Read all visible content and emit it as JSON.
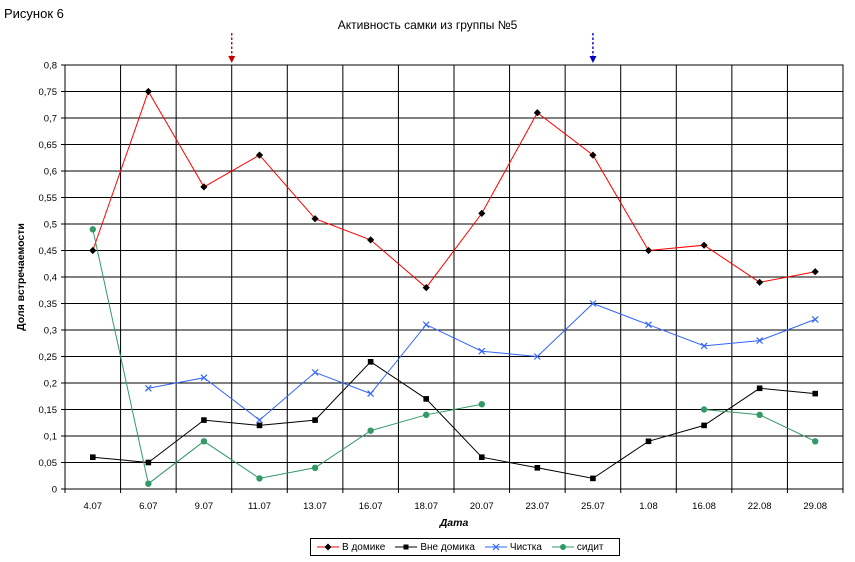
{
  "figure_label": "Рисунок 6",
  "chart_data": {
    "type": "line",
    "title": "Активность самки из группы №5",
    "xlabel": "Дата",
    "ylabel": "Доля встречаемости",
    "ylim": [
      0,
      0.8
    ],
    "ytick_step": 0.05,
    "y_tick_labels": [
      "0",
      "0,05",
      "0,1",
      "0,15",
      "0,2",
      "0,25",
      "0,3",
      "0,35",
      "0,4",
      "0,45",
      "0,5",
      "0,55",
      "0,6",
      "0,65",
      "0,7",
      "0,75",
      "0,8"
    ],
    "grid": true,
    "legend_position": "bottom",
    "categories": [
      "4.07",
      "6.07",
      "9.07",
      "11.07",
      "13.07",
      "16.07",
      "18.07",
      "20.07",
      "23.07",
      "25.07",
      "1.08",
      "16.08",
      "22.08",
      "29.08"
    ],
    "series": [
      {
        "name": "В домике",
        "color": "#ff0000",
        "marker": "diamond",
        "values": [
          0.45,
          0.75,
          0.57,
          0.63,
          0.51,
          0.47,
          0.38,
          0.52,
          0.71,
          0.63,
          0.45,
          0.46,
          0.39,
          0.41
        ]
      },
      {
        "name": "Вне домика",
        "color": "#000000",
        "marker": "square",
        "values": [
          0.06,
          0.05,
          0.13,
          0.12,
          0.13,
          0.24,
          0.17,
          0.06,
          0.04,
          0.02,
          0.09,
          0.12,
          0.19,
          0.18
        ]
      },
      {
        "name": "Чистка",
        "color": "#3366ff",
        "marker": "x",
        "values": [
          null,
          0.19,
          0.21,
          0.13,
          0.22,
          0.18,
          0.31,
          0.26,
          0.25,
          0.35,
          0.31,
          0.27,
          0.28,
          0.32
        ]
      },
      {
        "name": "сидит",
        "color": "#339966",
        "marker": "circle",
        "values": [
          0.49,
          0.01,
          0.09,
          0.02,
          0.04,
          0.11,
          0.14,
          0.16,
          null,
          null,
          null,
          0.15,
          0.14,
          0.09
        ]
      }
    ],
    "annotations": [
      {
        "type": "arrow",
        "style": "dashed",
        "color": "#cc0000",
        "x_between": [
          "9.07",
          "11.07"
        ]
      },
      {
        "type": "arrow",
        "style": "dashed",
        "color": "#0000cc",
        "x": "25.07"
      }
    ]
  }
}
